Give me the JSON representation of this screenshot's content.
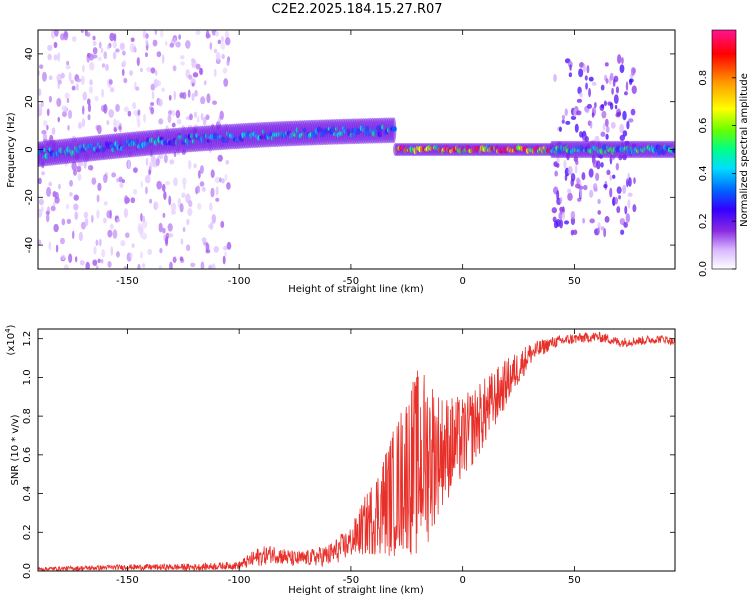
{
  "title": "C2E2.2025.184.15.27.R07",
  "chart_data": [
    {
      "type": "heatmap",
      "xlabel": "Height of straight line (km)",
      "ylabel": "Frequency (Hz)",
      "xlim": [
        -190,
        95
      ],
      "ylim": [
        -50,
        50
      ],
      "xticks": [
        -150,
        -100,
        -50,
        0,
        50
      ],
      "yticks": [
        -40,
        -20,
        0,
        20,
        40
      ],
      "colorbar": {
        "label": "Normalized spectral amplitude",
        "range": [
          0.0,
          1.0
        ],
        "ticks": [
          0.0,
          0.2,
          0.4,
          0.6,
          0.8
        ],
        "colors": [
          "#ffffff",
          "#d9b8ff",
          "#8a2be2",
          "#3300ff",
          "#0066ff",
          "#00ddff",
          "#00ff88",
          "#66ff00",
          "#ffff00",
          "#ff9900",
          "#ff0000",
          "#ff1493"
        ]
      },
      "regions": [
        {
          "x": [
            -190,
            -105
          ],
          "freq_spread": [
            -50,
            50
          ],
          "amplitude": 0.15
        },
        {
          "x": [
            -190,
            -30
          ],
          "freq_center": [
            -2,
            8
          ],
          "freq_width": 6,
          "amplitude": 0.45
        },
        {
          "x": [
            -30,
            40
          ],
          "freq_center": 0,
          "freq_width": 3,
          "amplitude": 0.85
        },
        {
          "x": [
            41,
            77
          ],
          "freq_spread": [
            -35,
            38
          ],
          "amplitude": 0.25
        },
        {
          "x": [
            40,
            95
          ],
          "freq_center": 0,
          "freq_width": 4,
          "amplitude": 0.5
        }
      ]
    },
    {
      "type": "line",
      "xlabel": "Height of straight line (km)",
      "ylabel": "SNR (10 * v/v)",
      "y_multiplier": "(x10",
      "y_multiplier_exp": "4",
      "y_multiplier_close": ")",
      "xlim": [
        -190,
        95
      ],
      "ylim": [
        0.0,
        1.25
      ],
      "xticks": [
        -150,
        -100,
        -50,
        0,
        50
      ],
      "yticks": [
        0.0,
        0.2,
        0.4,
        0.6,
        0.8,
        1.0,
        1.2
      ],
      "color": "#e8302a",
      "trend": {
        "x": [
          -190,
          -150,
          -120,
          -100,
          -92,
          -85,
          -75,
          -60,
          -50,
          -40,
          -30,
          -25,
          -20,
          -15,
          -10,
          -5,
          0,
          5,
          10,
          15,
          20,
          25,
          30,
          40,
          50,
          60,
          65,
          70,
          80,
          90,
          95
        ],
        "y": [
          0.01,
          0.02,
          0.02,
          0.03,
          0.07,
          0.09,
          0.06,
          0.08,
          0.15,
          0.28,
          0.42,
          0.52,
          0.55,
          0.6,
          0.62,
          0.65,
          0.68,
          0.75,
          0.82,
          0.9,
          0.98,
          1.05,
          1.12,
          1.18,
          1.2,
          1.21,
          1.2,
          1.18,
          1.19,
          1.2,
          1.18
        ]
      },
      "noise": {
        "x": [
          -190,
          -100,
          -92,
          -70,
          -50,
          -40,
          -30,
          -20,
          -15,
          -10,
          0,
          10,
          20,
          30,
          40,
          95
        ],
        "amp": [
          0.01,
          0.02,
          0.05,
          0.04,
          0.08,
          0.2,
          0.35,
          0.5,
          0.45,
          0.3,
          0.22,
          0.18,
          0.12,
          0.06,
          0.03,
          0.02
        ]
      }
    }
  ]
}
